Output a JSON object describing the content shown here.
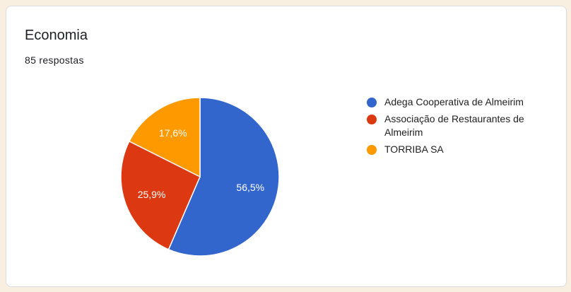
{
  "header": {
    "title": "Economia",
    "responses": "85 respostas"
  },
  "chart_data": {
    "type": "pie",
    "categories": [
      "Adega Cooperativa de Almeirim",
      "Associação de Restaurantes de Almeirim",
      "TORRIBA SA"
    ],
    "values": [
      56.5,
      25.9,
      17.6
    ],
    "labels": [
      "56,5%",
      "25,9%",
      "17,6%"
    ],
    "colors": [
      "#3366cc",
      "#dc3912",
      "#ff9900"
    ],
    "legend_position": "right"
  }
}
